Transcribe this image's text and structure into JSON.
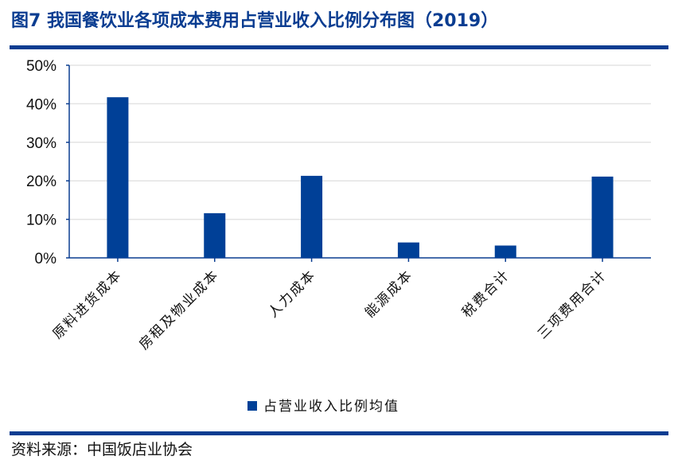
{
  "title": "图7  我国餐饮业各项成本费用占营业收入比例分布图（2019）",
  "source": "资料来源：中国饭店业协会",
  "colors": {
    "bar": "#004097",
    "axis": "#0a3d91",
    "grid": "#e3e3e3"
  },
  "chart_data": {
    "type": "bar",
    "categories": [
      "原料进货成本",
      "房租及物业成本",
      "人力成本",
      "能源成本",
      "税费合计",
      "三项费用合计"
    ],
    "series": [
      {
        "name": "占营业收入比例均值",
        "values": [
          41.7,
          11.6,
          21.3,
          4.0,
          3.2,
          21.1
        ]
      }
    ],
    "yticks": [
      "0%",
      "10%",
      "20%",
      "30%",
      "40%",
      "50%"
    ],
    "ylim": [
      0,
      50
    ],
    "yunit": "%",
    "grid": true,
    "legend": "bottom"
  }
}
